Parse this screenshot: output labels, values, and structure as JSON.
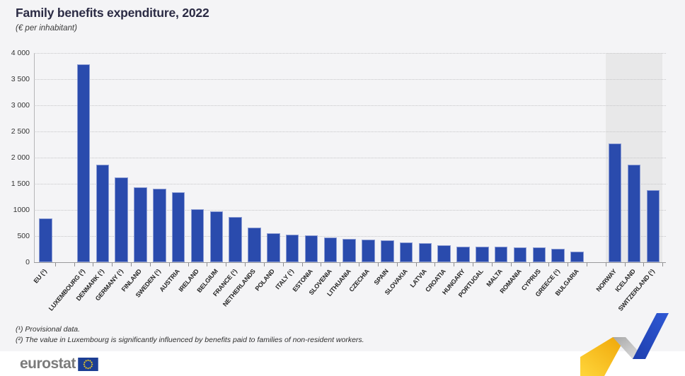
{
  "header": {
    "title": "Family benefits expenditure, 2022",
    "subtitle": "(€ per inhabitant)"
  },
  "chart_data": {
    "type": "bar",
    "title": "Family benefits expenditure, 2022",
    "subtitle": "(€ per inhabitant)",
    "ylabel": "€ per inhabitant",
    "xlabel": "",
    "ylim": [
      0,
      4000
    ],
    "ytick_step": 500,
    "ytick_labels": [
      "0",
      "500",
      "1000",
      "1 500",
      "2 000",
      "2 500",
      "3 000",
      "3 500",
      "4 000"
    ],
    "grid": "horizontal-dotted",
    "legend_position": "none",
    "bar_color": "#2A4BAD",
    "bar_edge_color": "#8e9ed4",
    "efta_band_color": "#e8e8e9",
    "groups": [
      {
        "name": "eu-aggregate",
        "bars": [
          {
            "label": "EU (¹)",
            "value": 840
          }
        ]
      },
      {
        "name": "member-states",
        "bars": [
          {
            "label": "LUXEMBOURG (²)",
            "value": 3780
          },
          {
            "label": "DENMARK (¹)",
            "value": 1870
          },
          {
            "label": "GERMANY (¹)",
            "value": 1615
          },
          {
            "label": "FINLAND",
            "value": 1430
          },
          {
            "label": "SWEDEN (¹)",
            "value": 1400
          },
          {
            "label": "AUSTRIA",
            "value": 1340
          },
          {
            "label": "IRELAND",
            "value": 1020
          },
          {
            "label": "BELGIUM",
            "value": 970
          },
          {
            "label": "FRANCE (¹)",
            "value": 868
          },
          {
            "label": "NETHERLANDS",
            "value": 665
          },
          {
            "label": "POLAND",
            "value": 560
          },
          {
            "label": "ITALY (¹)",
            "value": 525
          },
          {
            "label": "ESTONIA",
            "value": 510
          },
          {
            "label": "SLOVENIA",
            "value": 478
          },
          {
            "label": "LITHUANIA",
            "value": 452
          },
          {
            "label": "CZECHIA",
            "value": 438
          },
          {
            "label": "SPAIN",
            "value": 418
          },
          {
            "label": "SLOVAKIA",
            "value": 383
          },
          {
            "label": "LATVIA",
            "value": 367
          },
          {
            "label": "CROATIA",
            "value": 318
          },
          {
            "label": "HUNGARY",
            "value": 300
          },
          {
            "label": "PORTUGAL",
            "value": 294
          },
          {
            "label": "MALTA",
            "value": 291
          },
          {
            "label": "ROMANIA",
            "value": 285
          },
          {
            "label": "CYPRUS",
            "value": 282
          },
          {
            "label": "GREECE (¹)",
            "value": 259
          },
          {
            "label": "BULGARIA",
            "value": 209
          }
        ]
      },
      {
        "name": "efta",
        "bars": [
          {
            "label": "NORWAY",
            "value": 2270
          },
          {
            "label": "ICELAND",
            "value": 1870
          },
          {
            "label": "SWITZERLAND (¹)",
            "value": 1378
          }
        ]
      }
    ]
  },
  "footnotes": {
    "line1": "(¹) Provisional data.",
    "line2": "(²) The value in Luxembourg is significantly influenced by benefits paid to families of non-resident workers."
  },
  "branding": {
    "logo_text": "eurostat",
    "flag_icon": "eu-flag-icon",
    "flag_blue": "#1c3e94",
    "star_yellow": "#FFD617",
    "decoration_yellow": "#F5AE0A",
    "decoration_gray": "#c2c2c2",
    "decoration_blue": "#2B51C9"
  }
}
